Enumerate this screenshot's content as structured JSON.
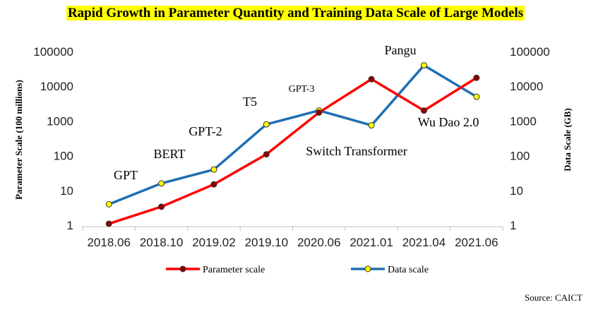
{
  "title": "Rapid Growth in Parameter Quantity and Training Data Scale of Large Models",
  "source": "Source: CAICT",
  "chart_data": {
    "type": "line",
    "title": "Rapid Growth in Parameter Quantity and Training Data Scale of Large Models",
    "xlabel": "",
    "ylabel": "Parameter Scale (100 millions)",
    "y2label": "Data Scale (GB)",
    "yscale": "log",
    "ylim": [
      1,
      100000
    ],
    "y2lim": [
      1,
      100000
    ],
    "yticks": [
      "1",
      "10",
      "100",
      "1000",
      "10000",
      "100000"
    ],
    "y2ticks": [
      "1",
      "10",
      "100",
      "1000",
      "10000",
      "100000"
    ],
    "grid": false,
    "legend_position": "bottom",
    "categories": [
      "2018.06",
      "2018.10",
      "2019.02",
      "2019.10",
      "2020.06",
      "2021.01",
      "2021.04",
      "2021.06"
    ],
    "series": [
      {
        "name": "Parameter scale",
        "color": "#ff0000",
        "marker_color": "#8b0000",
        "axis": "left",
        "values": [
          1.1,
          3.4,
          15,
          110,
          1750,
          16000,
          2000,
          17500
        ]
      },
      {
        "name": "Data scale",
        "color": "#1f6fb2",
        "marker_color": "#ffff00",
        "axis": "right",
        "values": [
          4,
          16,
          40,
          800,
          2000,
          750,
          40000,
          5000
        ]
      }
    ],
    "annotations": [
      {
        "text": "GPT",
        "index": 0
      },
      {
        "text": "BERT",
        "index": 1
      },
      {
        "text": "GPT-2",
        "index": 2
      },
      {
        "text": "T5",
        "index": 3
      },
      {
        "text": "GPT-3",
        "index": 4
      },
      {
        "text": "Switch Transformer",
        "index": 5
      },
      {
        "text": "Pangu",
        "index": 6
      },
      {
        "text": "Wu Dao 2.0",
        "index": 7
      }
    ]
  }
}
